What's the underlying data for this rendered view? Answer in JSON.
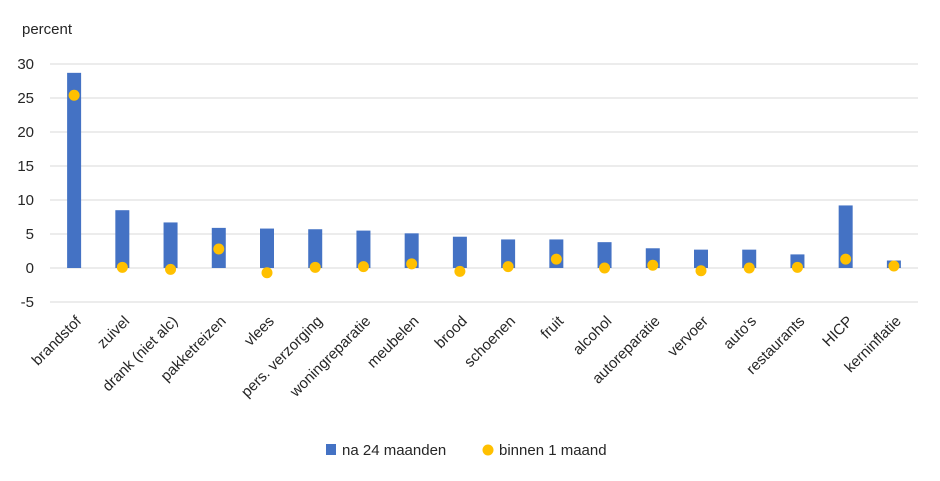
{
  "chart_data": {
    "type": "bar",
    "ylabel": "percent",
    "ylim": [
      -5,
      30
    ],
    "yticks": [
      -5,
      0,
      5,
      10,
      15,
      20,
      25,
      30
    ],
    "grid": true,
    "legend_position": "bottom",
    "categories": [
      "brandstof",
      "zuivel",
      "drank (niet alc)",
      "pakketreizen",
      "vlees",
      "pers. verzorging",
      "woningreparatie",
      "meubelen",
      "brood",
      "schoenen",
      "fruit",
      "alcohol",
      "autoreparatie",
      "vervoer",
      "auto's",
      "restaurants",
      "HICP",
      "kerninflatie"
    ],
    "series": [
      {
        "name": "na 24 maanden",
        "kind": "bar",
        "color": "#4472C4",
        "values": [
          28.7,
          8.5,
          6.7,
          5.9,
          5.8,
          5.7,
          5.5,
          5.1,
          4.6,
          4.2,
          4.2,
          3.8,
          2.9,
          2.7,
          2.7,
          2.0,
          9.2,
          1.1
        ]
      },
      {
        "name": "binnen 1 maand",
        "kind": "marker",
        "color": "#FFC000",
        "values": [
          25.4,
          0.1,
          -0.2,
          2.8,
          -0.7,
          0.1,
          0.2,
          0.6,
          -0.5,
          0.2,
          1.3,
          0.0,
          0.4,
          -0.4,
          0.0,
          0.1,
          1.3,
          0.3
        ]
      }
    ]
  }
}
